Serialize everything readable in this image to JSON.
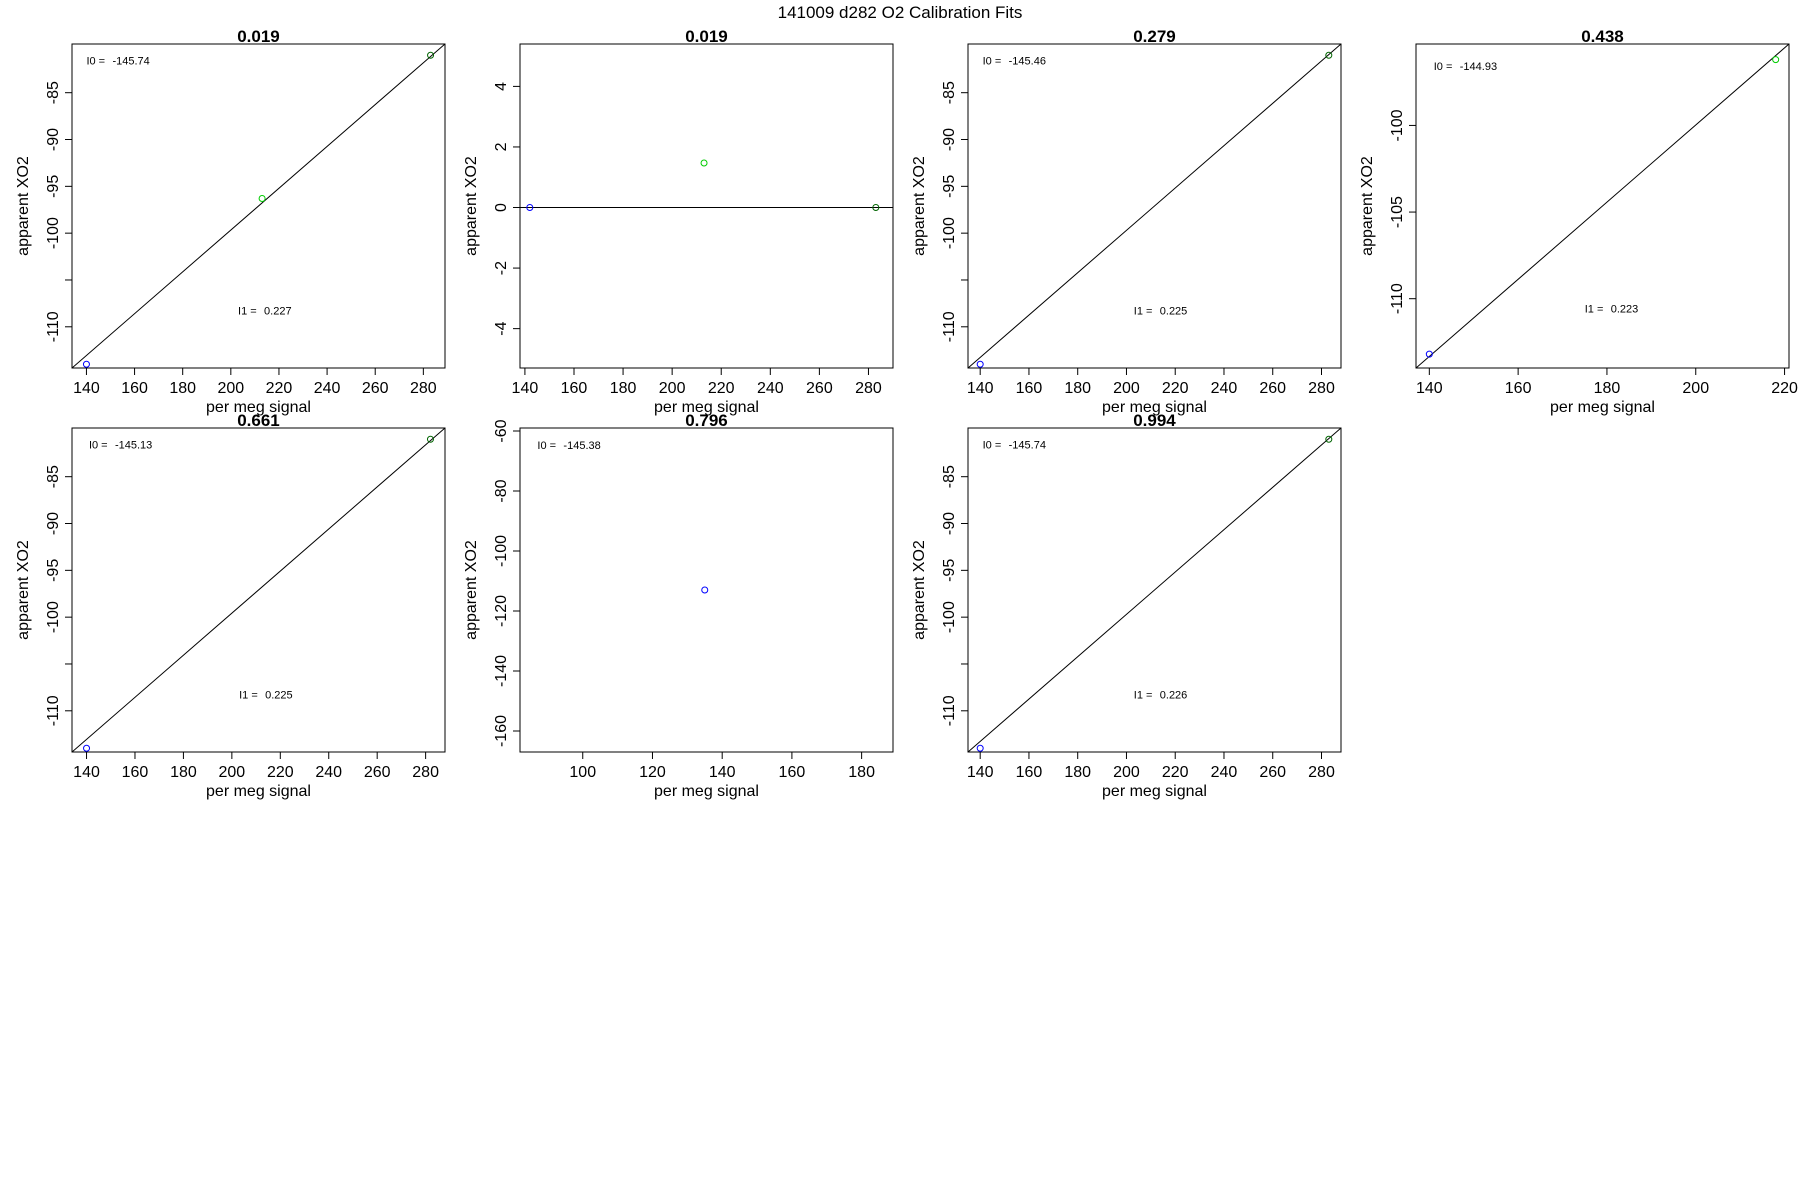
{
  "page": {
    "title": "141009   d282   O2 Calibration Fits"
  },
  "colors": {
    "axis": "#000000",
    "fit_line": "#000000",
    "point_blue": "#0000ff",
    "point_green": "#00cc00",
    "point_darkgreen": "#006400"
  },
  "chart_data": [
    {
      "type": "scatter",
      "title": "0.019",
      "xlabel": "per meg signal",
      "ylabel": "apparent XO2",
      "xlim": [
        134,
        289
      ],
      "ylim": [
        -114.4,
        -79.8
      ],
      "xticks": [
        140,
        160,
        180,
        200,
        220,
        240,
        260,
        280
      ],
      "yticks": [
        -85,
        -90,
        -95,
        -100,
        -105,
        -110
      ],
      "yticklabels": [
        "-85",
        "-90",
        "-95",
        "-100",
        "",
        "-110"
      ],
      "points": [
        {
          "x": 140,
          "y": -114
        },
        {
          "x": 213,
          "y": -96.3
        },
        {
          "x": 283,
          "y": -81
        }
      ],
      "point_colors": [
        "point_blue",
        "point_green",
        "point_darkgreen"
      ],
      "fit": {
        "x1": 134,
        "y1": -114.4,
        "x2": 289,
        "y2": -79.8
      },
      "annotations": [
        {
          "label": "I0 =",
          "value": "-145.74",
          "x": 140,
          "y": -82
        },
        {
          "label": "I1 =",
          "value": "0.227",
          "x": 203,
          "y": -108.7
        }
      ]
    },
    {
      "type": "scatter",
      "title": "0.019",
      "xlabel": "per meg signal",
      "ylabel": "apparent XO2",
      "xlim": [
        138,
        290
      ],
      "ylim": [
        -5.3,
        5.4
      ],
      "xticks": [
        140,
        160,
        180,
        200,
        220,
        240,
        260,
        280
      ],
      "yticks": [
        4,
        2,
        0,
        -2,
        -4
      ],
      "yticklabels": [
        "4",
        "2",
        "0",
        "-2",
        "-4"
      ],
      "points": [
        {
          "x": 142,
          "y": 0
        },
        {
          "x": 213,
          "y": 1.47
        },
        {
          "x": 283,
          "y": 0
        }
      ],
      "point_colors": [
        "point_blue",
        "point_green",
        "point_darkgreen"
      ],
      "fit": {
        "x1": 138,
        "y1": 0,
        "x2": 290,
        "y2": 0
      },
      "annotations": []
    },
    {
      "type": "scatter",
      "title": "0.279",
      "xlabel": "per meg signal",
      "ylabel": "apparent XO2",
      "xlim": [
        135,
        288
      ],
      "ylim": [
        -114.4,
        -79.8
      ],
      "xticks": [
        140,
        160,
        180,
        200,
        220,
        240,
        260,
        280
      ],
      "yticks": [
        -85,
        -90,
        -95,
        -100,
        -105,
        -110
      ],
      "yticklabels": [
        "-85",
        "-90",
        "-95",
        "-100",
        "",
        "-110"
      ],
      "points": [
        {
          "x": 140,
          "y": -114
        },
        {
          "x": 283,
          "y": -81
        }
      ],
      "point_colors": [
        "point_blue",
        "point_darkgreen"
      ],
      "fit": {
        "x1": 135,
        "y1": -114.4,
        "x2": 288,
        "y2": -79.8
      },
      "annotations": [
        {
          "label": "I0 =",
          "value": "-145.46",
          "x": 141,
          "y": -82
        },
        {
          "label": "I1 =",
          "value": "0.225",
          "x": 203,
          "y": -108.7
        }
      ]
    },
    {
      "type": "scatter",
      "title": "0.438",
      "xlabel": "per meg signal",
      "ylabel": "apparent XO2",
      "xlim": [
        137,
        221
      ],
      "ylim": [
        -114,
        -95.3
      ],
      "xticks": [
        140,
        160,
        180,
        200,
        220
      ],
      "yticks": [
        -100,
        -105,
        -110
      ],
      "yticklabels": [
        "-100",
        "-105",
        "-110"
      ],
      "points": [
        {
          "x": 140,
          "y": -113.2
        },
        {
          "x": 218,
          "y": -96.2
        }
      ],
      "point_colors": [
        "point_blue",
        "point_green"
      ],
      "fit": {
        "x1": 137,
        "y1": -114,
        "x2": 221,
        "y2": -95.3
      },
      "annotations": [
        {
          "label": "I0 =",
          "value": "-144.93",
          "x": 141,
          "y": -96.8
        },
        {
          "label": "I1 =",
          "value": "0.223",
          "x": 175,
          "y": -110.8
        }
      ]
    },
    {
      "type": "scatter",
      "title": "0.661",
      "xlabel": "per meg signal",
      "ylabel": "apparent XO2",
      "xlim": [
        134,
        288
      ],
      "ylim": [
        -114.4,
        -79.8
      ],
      "xticks": [
        140,
        160,
        180,
        200,
        220,
        240,
        260,
        280
      ],
      "yticks": [
        -85,
        -90,
        -95,
        -100,
        -105,
        -110
      ],
      "yticklabels": [
        "-85",
        "-90",
        "-95",
        "-100",
        "",
        "-110"
      ],
      "points": [
        {
          "x": 140,
          "y": -114
        },
        {
          "x": 282,
          "y": -81
        }
      ],
      "point_colors": [
        "point_blue",
        "point_darkgreen"
      ],
      "fit": {
        "x1": 134,
        "y1": -114.4,
        "x2": 288,
        "y2": -79.8
      },
      "annotations": [
        {
          "label": "I0 =",
          "value": "-145.13",
          "x": 141,
          "y": -82
        },
        {
          "label": "I1 =",
          "value": "0.225",
          "x": 203,
          "y": -108.7
        }
      ]
    },
    {
      "type": "scatter",
      "title": "0.796",
      "xlabel": "per meg signal",
      "ylabel": "apparent XO2",
      "xlim": [
        82,
        189
      ],
      "ylim": [
        -167,
        -59
      ],
      "xticks": [
        100,
        120,
        140,
        160,
        180
      ],
      "yticks": [
        -60,
        -80,
        -100,
        -120,
        -140,
        -160
      ],
      "yticklabels": [
        "-60",
        "-80",
        "-100",
        "-120",
        "-140",
        "-160"
      ],
      "points": [
        {
          "x": 135,
          "y": -113
        }
      ],
      "point_colors": [
        "point_blue"
      ],
      "fit": null,
      "annotations": [
        {
          "label": "I0 =",
          "value": "-145.38",
          "x": 87,
          "y": -66
        }
      ]
    },
    {
      "type": "scatter",
      "title": "0.994",
      "xlabel": "per meg signal",
      "ylabel": "apparent XO2",
      "xlim": [
        135,
        288
      ],
      "ylim": [
        -114.4,
        -79.8
      ],
      "xticks": [
        140,
        160,
        180,
        200,
        220,
        240,
        260,
        280
      ],
      "yticks": [
        -85,
        -90,
        -95,
        -100,
        -105,
        -110
      ],
      "yticklabels": [
        "-85",
        "-90",
        "-95",
        "-100",
        "",
        "-110"
      ],
      "points": [
        {
          "x": 140,
          "y": -114
        },
        {
          "x": 283,
          "y": -81
        }
      ],
      "point_colors": [
        "point_blue",
        "point_darkgreen"
      ],
      "fit": {
        "x1": 135,
        "y1": -114.4,
        "x2": 288,
        "y2": -79.8
      },
      "annotations": [
        {
          "label": "I0 =",
          "value": "-145.74",
          "x": 141,
          "y": -82
        },
        {
          "label": "I1 =",
          "value": "0.226",
          "x": 203,
          "y": -108.7
        }
      ]
    }
  ]
}
